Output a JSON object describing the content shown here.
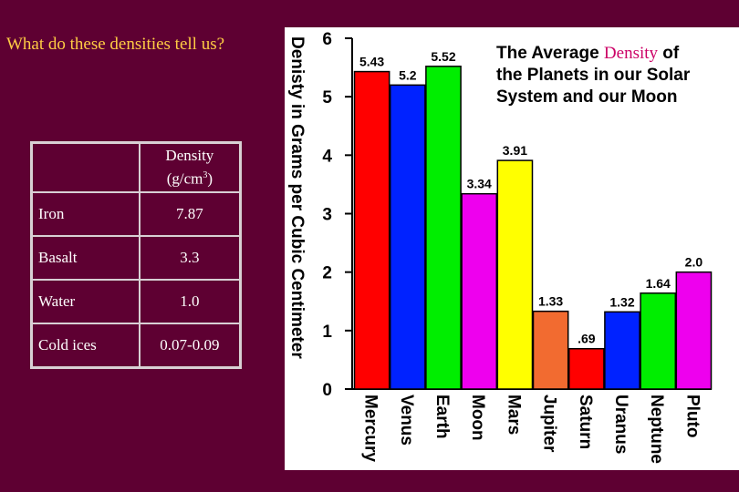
{
  "slide": {
    "question": "What do these densities tell us?"
  },
  "density_table": {
    "header": {
      "material": "",
      "density_line1": "Density",
      "density_unit": "(g/cm",
      "density_sup": "3",
      "density_close": ")"
    },
    "rows": [
      {
        "material": "Iron",
        "density": "7.87"
      },
      {
        "material": "Basalt",
        "density": "3.3"
      },
      {
        "material": "Water",
        "density": "1.0"
      },
      {
        "material": "Cold ices",
        "density": "0.07-0.09"
      }
    ]
  },
  "colors": {
    "background": "#5e0032",
    "question_text": "#ffcc44",
    "density_word": "#cc0066",
    "table_text": "#ffffff",
    "table_border": "#d8d0d4"
  },
  "chart_data": {
    "type": "bar",
    "title_parts": [
      "The Average ",
      "Density",
      " of",
      "the Planets in our Solar",
      "System and our Moon"
    ],
    "ylabel": "Denisty in Grams per Cubic Centimeter",
    "xlabel": "",
    "ylim": [
      0,
      6
    ],
    "yticks": [
      0,
      1,
      2,
      3,
      4,
      5,
      6
    ],
    "grid": false,
    "categories": [
      "Mercury",
      "Venus",
      "Earth",
      "Moon",
      "Mars",
      "Jupiter",
      "Saturn",
      "Uranus",
      "Neptune",
      "Pluto"
    ],
    "values": [
      5.43,
      5.2,
      5.52,
      3.34,
      3.91,
      1.33,
      0.69,
      1.32,
      1.64,
      2.0
    ],
    "value_labels": [
      "5.43",
      "5.2",
      "5.52",
      "3.34",
      "3.91",
      "1.33",
      ".69",
      "1.32",
      "1.64",
      "2.0"
    ],
    "bar_colors": [
      "#ff0000",
      "#0022ff",
      "#00ee00",
      "#ee00ee",
      "#ffff00",
      "#f26b30",
      "#ff0000",
      "#0022ff",
      "#00ee00",
      "#ee00ee"
    ]
  }
}
